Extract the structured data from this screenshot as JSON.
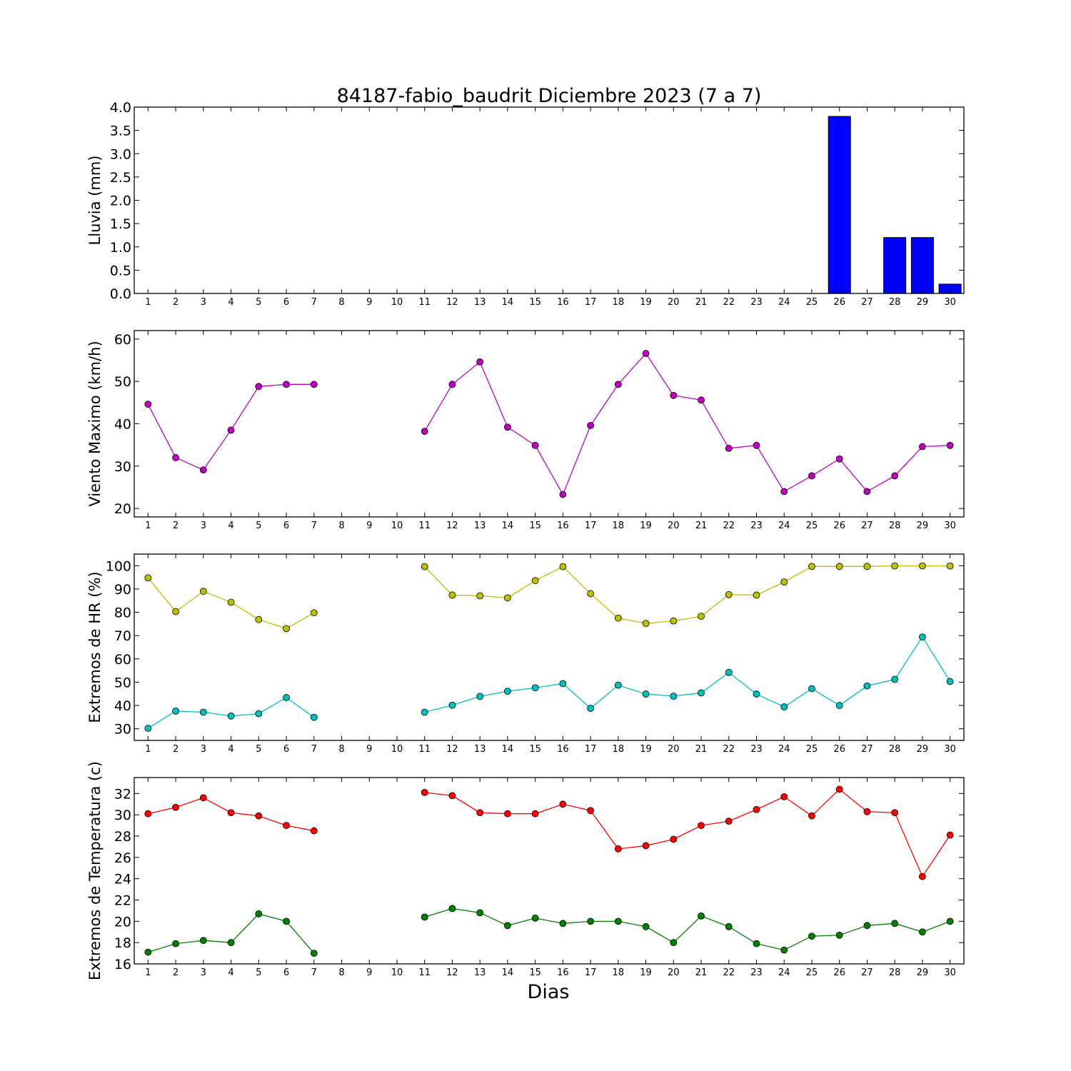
{
  "figure": {
    "title": "84187-fabio_baudrit Diciembre 2023  (7 a 7)",
    "xlabel": "Dias"
  },
  "chart_data": [
    {
      "type": "bar",
      "ylabel": "Lluvia (mm)",
      "ylim": [
        0,
        4
      ],
      "yticks": [
        "0.0",
        "0.5",
        "1.0",
        "1.5",
        "2.0",
        "2.5",
        "3.0",
        "3.5",
        "4.0"
      ],
      "ytick_values": [
        0,
        0.5,
        1,
        1.5,
        2,
        2.5,
        3,
        3.5,
        4
      ],
      "categories": [
        1,
        2,
        3,
        4,
        5,
        6,
        7,
        8,
        9,
        10,
        11,
        12,
        13,
        14,
        15,
        16,
        17,
        18,
        19,
        20,
        21,
        22,
        23,
        24,
        25,
        26,
        27,
        28,
        29,
        30
      ],
      "series": [
        {
          "color": "#0000ff",
          "values": [
            0,
            0,
            0,
            0,
            0,
            0,
            0,
            null,
            null,
            null,
            0,
            0,
            0,
            0,
            0,
            0,
            0,
            0,
            0,
            0,
            0,
            0,
            0,
            0,
            0,
            3.8,
            0,
            1.2,
            1.2,
            0.2
          ]
        }
      ]
    },
    {
      "type": "line",
      "ylabel": "Viento Maximo (km/h)",
      "ylim": [
        18,
        62
      ],
      "yticks": [
        "20",
        "30",
        "40",
        "50",
        "60"
      ],
      "ytick_values": [
        20,
        30,
        40,
        50,
        60
      ],
      "categories": [
        1,
        2,
        3,
        4,
        5,
        6,
        7,
        8,
        9,
        10,
        11,
        12,
        13,
        14,
        15,
        16,
        17,
        18,
        19,
        20,
        21,
        22,
        23,
        24,
        25,
        26,
        27,
        28,
        29,
        30
      ],
      "series": [
        {
          "color": "#bf00bf",
          "values": [
            44.6,
            32.0,
            29.1,
            38.5,
            48.8,
            49.3,
            49.3,
            null,
            null,
            null,
            38.2,
            49.3,
            54.6,
            39.2,
            34.9,
            23.3,
            39.6,
            49.3,
            56.6,
            46.7,
            45.6,
            34.2,
            34.9,
            24.0,
            27.7,
            31.7,
            24.0,
            27.7,
            34.6,
            34.9
          ]
        }
      ]
    },
    {
      "type": "line",
      "ylabel": "Extremos de HR (%)",
      "ylim": [
        25,
        105
      ],
      "yticks": [
        "30",
        "40",
        "50",
        "60",
        "70",
        "80",
        "90",
        "100"
      ],
      "ytick_values": [
        30,
        40,
        50,
        60,
        70,
        80,
        90,
        100
      ],
      "categories": [
        1,
        2,
        3,
        4,
        5,
        6,
        7,
        8,
        9,
        10,
        11,
        12,
        13,
        14,
        15,
        16,
        17,
        18,
        19,
        20,
        21,
        22,
        23,
        24,
        25,
        26,
        27,
        28,
        29,
        30
      ],
      "series": [
        {
          "color": "#bfbf00",
          "values": [
            94.8,
            80.3,
            89.0,
            84.3,
            76.9,
            73.0,
            79.8,
            null,
            null,
            null,
            99.6,
            87.4,
            87.1,
            86.2,
            93.6,
            99.6,
            88.0,
            77.5,
            75.2,
            76.3,
            78.3,
            87.6,
            87.4,
            93.0,
            99.7,
            99.7,
            99.7,
            99.9,
            99.9,
            99.9
          ]
        },
        {
          "color": "#00bfbf",
          "values": [
            30.2,
            37.6,
            37.1,
            35.5,
            36.5,
            43.4,
            34.9,
            null,
            null,
            null,
            37.1,
            40.1,
            43.9,
            46.1,
            47.6,
            49.4,
            38.8,
            48.7,
            44.9,
            44.0,
            45.4,
            54.2,
            44.9,
            39.4,
            47.2,
            40.0,
            48.4,
            51.2,
            69.4,
            50.3
          ]
        }
      ]
    },
    {
      "type": "line",
      "ylabel": "Extremos de Temperatura (c)",
      "ylim": [
        16,
        33.5
      ],
      "yticks": [
        "16",
        "18",
        "20",
        "22",
        "24",
        "26",
        "28",
        "30",
        "32"
      ],
      "ytick_values": [
        16,
        18,
        20,
        22,
        24,
        26,
        28,
        30,
        32
      ],
      "categories": [
        1,
        2,
        3,
        4,
        5,
        6,
        7,
        8,
        9,
        10,
        11,
        12,
        13,
        14,
        15,
        16,
        17,
        18,
        19,
        20,
        21,
        22,
        23,
        24,
        25,
        26,
        27,
        28,
        29,
        30
      ],
      "series": [
        {
          "color": "#ff0000",
          "values": [
            30.1,
            30.7,
            31.6,
            30.2,
            29.9,
            29.0,
            28.5,
            null,
            null,
            null,
            32.1,
            31.8,
            30.2,
            30.1,
            30.1,
            31.0,
            30.4,
            26.8,
            27.1,
            27.7,
            29.0,
            29.4,
            30.5,
            31.7,
            29.9,
            32.4,
            30.3,
            30.2,
            24.2,
            28.1
          ]
        },
        {
          "color": "#008000",
          "values": [
            17.1,
            17.9,
            18.2,
            18.0,
            20.7,
            20.0,
            17.0,
            null,
            null,
            null,
            20.4,
            21.2,
            20.8,
            19.6,
            20.3,
            19.8,
            20.0,
            20.0,
            19.5,
            18.0,
            20.5,
            19.5,
            17.9,
            17.3,
            18.6,
            18.7,
            19.6,
            19.8,
            19.0,
            20.0
          ]
        }
      ]
    }
  ]
}
